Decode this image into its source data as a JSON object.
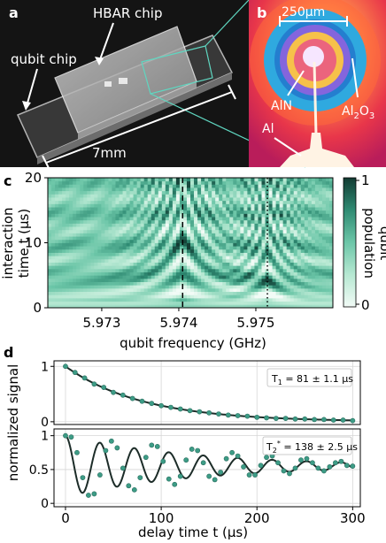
{
  "panel_a": {
    "letter": "a",
    "label_hbar": "HBAR chip",
    "label_qubit": "qubit chip",
    "scale_label": "7mm"
  },
  "panel_b": {
    "letter": "b",
    "scale_label": "250µm",
    "label_aln": "AlN",
    "label_al2o3_main": "Al",
    "label_al2o3_sub": "2",
    "label_al2o3_o": "O",
    "label_al2o3_sub2": "3",
    "label_al": "Al"
  },
  "panel_c": {
    "letter": "c",
    "ylabel_line1": "interaction",
    "ylabel_line2": "time t (µs)",
    "xlabel": "qubit frequency (GHz)",
    "colorbar_label_line1": "qubit",
    "colorbar_label_line2": "population",
    "colorbar_ticks": [
      "0",
      "1"
    ],
    "x_ticks": [
      "5.973",
      "5.974",
      "5.975"
    ],
    "y_ticks": [
      "0",
      "10",
      "20"
    ]
  },
  "panel_d": {
    "letter": "d",
    "ylabel": "normalized signal",
    "xlabel": "delay time t (µs)",
    "x_ticks": [
      "0",
      "100",
      "200",
      "300"
    ],
    "top_y_ticks": [
      "0",
      "1"
    ],
    "bottom_y_ticks": [
      "0",
      "0.5",
      "1"
    ],
    "t1_label_base": "T",
    "t1_label_sub": "1",
    "t1_label_rest": " = 81 ± 1.1 µs",
    "t2_label_base": "T",
    "t2_label_sub": "2",
    "t2_label_sup": "*",
    "t2_label_rest": " = 138 ± 2.5 µs"
  },
  "chart_data": [
    {
      "type": "heatmap",
      "xlabel": "qubit frequency (GHz)",
      "ylabel": "interaction time t (µs)",
      "xlim": [
        5.9723,
        5.976
      ],
      "ylim": [
        0,
        20
      ],
      "colorbar": {
        "label": "qubit population",
        "range": [
          0,
          1
        ]
      },
      "vlines": [
        {
          "x": 5.97405,
          "style": "dashed"
        },
        {
          "x": 5.97515,
          "style": "dotted"
        }
      ]
    },
    {
      "type": "scatter",
      "xlabel": "delay time t (µs)",
      "ylabel": "normalized signal",
      "xlim": [
        -12,
        308
      ],
      "ylim": [
        -0.05,
        1.1
      ],
      "fit": {
        "model": "exponential",
        "T1": 81
      },
      "x": [
        0,
        10,
        20,
        30,
        40,
        50,
        60,
        70,
        80,
        90,
        100,
        110,
        120,
        130,
        140,
        150,
        160,
        170,
        180,
        190,
        200,
        210,
        220,
        230,
        240,
        250,
        260,
        270,
        280,
        290,
        300
      ],
      "values": [
        1.0,
        0.89,
        0.79,
        0.68,
        0.62,
        0.53,
        0.48,
        0.42,
        0.37,
        0.33,
        0.29,
        0.26,
        0.23,
        0.2,
        0.18,
        0.16,
        0.14,
        0.12,
        0.11,
        0.1,
        0.08,
        0.07,
        0.06,
        0.06,
        0.05,
        0.05,
        0.04,
        0.04,
        0.03,
        0.03,
        0.02
      ]
    },
    {
      "type": "scatter",
      "xlabel": "delay time t (µs)",
      "ylabel": "normalized signal",
      "xlim": [
        -12,
        308
      ],
      "ylim": [
        -0.05,
        1.1
      ],
      "fit": {
        "model": "damped-cosine",
        "T2star": 138,
        "period": 36,
        "offset": 0.55
      },
      "x": [
        0,
        6,
        12,
        18,
        24,
        30,
        36,
        42,
        48,
        54,
        60,
        66,
        72,
        78,
        84,
        90,
        96,
        102,
        108,
        114,
        120,
        126,
        132,
        138,
        144,
        150,
        156,
        162,
        168,
        174,
        180,
        186,
        192,
        198,
        204,
        210,
        216,
        222,
        228,
        234,
        240,
        246,
        252,
        258,
        264,
        270,
        276,
        282,
        288,
        294,
        300
      ],
      "values": [
        1.0,
        0.98,
        0.75,
        0.38,
        0.12,
        0.14,
        0.42,
        0.78,
        0.92,
        0.82,
        0.52,
        0.26,
        0.2,
        0.38,
        0.68,
        0.86,
        0.84,
        0.62,
        0.36,
        0.28,
        0.4,
        0.64,
        0.8,
        0.78,
        0.6,
        0.4,
        0.35,
        0.46,
        0.66,
        0.75,
        0.7,
        0.54,
        0.42,
        0.42,
        0.56,
        0.68,
        0.7,
        0.6,
        0.48,
        0.44,
        0.52,
        0.64,
        0.66,
        0.6,
        0.52,
        0.48,
        0.54,
        0.6,
        0.62,
        0.56,
        0.55
      ]
    }
  ]
}
